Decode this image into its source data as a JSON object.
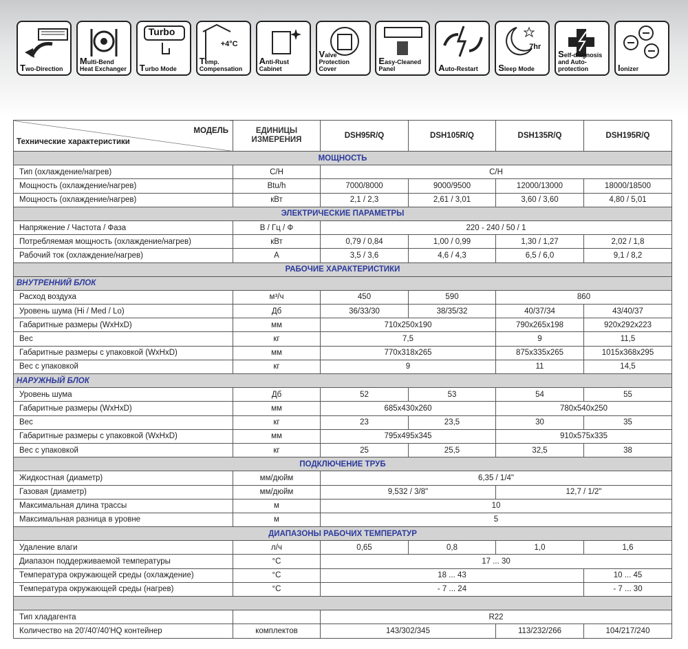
{
  "icons": [
    {
      "label": "Two-Direction"
    },
    {
      "label": "Multi-Bend Heat Exchanger"
    },
    {
      "label": "Turbo Mode",
      "glyph_text": "Turbo"
    },
    {
      "label": "Temp. Compensation",
      "glyph_text": "+4°C"
    },
    {
      "label": "Anti-Rust Cabinet"
    },
    {
      "label": "Valve Protection Cover"
    },
    {
      "label": "Easy-Cleaned Panel"
    },
    {
      "label": "Auto-Restart"
    },
    {
      "label": "Sleep Mode",
      "glyph_text": "7hr"
    },
    {
      "label": "Self-diagnosis and Auto-protection"
    },
    {
      "label": "Ionizer"
    }
  ],
  "table": {
    "header": {
      "model_label": "МОДЕЛЬ",
      "spec_label": "Технические характеристики",
      "unit_label": "ЕДИНИЦЫ ИЗМЕРЕНИЯ",
      "models": [
        "DSH95R/Q",
        "DSH105R/Q",
        "DSH135R/Q",
        "DSH195R/Q"
      ]
    },
    "rows": [
      {
        "section": "МОЩНОСТЬ"
      },
      {
        "label": "Тип (охлаждение/нагрев)",
        "unit": "C/H",
        "cells": [
          "C/H",
          null,
          null,
          null
        ]
      },
      {
        "label": "Мощность (охлаждение/нагрев)",
        "unit": "Btu/h",
        "cells": [
          "7000/8000",
          "9000/9500",
          "12000/13000",
          "18000/18500"
        ]
      },
      {
        "label": "Мощность (охлаждение/нагрев)",
        "unit": "кВт",
        "cells": [
          "2,1 / 2,3",
          "2,61 / 3,01",
          "3,60 / 3,60",
          "4,80 / 5,01"
        ]
      },
      {
        "section": "ЭЛЕКТРИЧЕСКИЕ ПАРАМЕТРЫ"
      },
      {
        "label": "Напряжение / Частота / Фаза",
        "unit": "В / Гц / Ф",
        "cells": [
          "220 - 240 / 50 / 1",
          null,
          null,
          null
        ]
      },
      {
        "label": "Потребляемая мощность (охлаждение/нагрев)",
        "unit": "кВт",
        "cells": [
          "0,79 / 0,84",
          "1,00 / 0,99",
          "1,30 / 1,27",
          "2,02 / 1,8"
        ]
      },
      {
        "label": "Рабочий ток (охлаждение/нагрев)",
        "unit": "А",
        "cells": [
          "3,5 / 3,6",
          "4,6 / 4,3",
          "6,5 / 6,0",
          "9,1 / 8,2"
        ]
      },
      {
        "section": "РАБОЧИЕ ХАРАКТЕРИСТИКИ"
      },
      {
        "subsection": "ВНУТРЕННИЙ БЛОК"
      },
      {
        "label": "Расход воздуха",
        "unit": "м³/ч",
        "cells": [
          "450",
          "590",
          "860",
          null
        ]
      },
      {
        "label": "Уровень шума (Hi / Med / Lo)",
        "unit": "Дб",
        "cells": [
          "36/33/30",
          "38/35/32",
          "40/37/34",
          "43/40/37"
        ]
      },
      {
        "label": "Габаритные размеры (WxHxD)",
        "unit": "мм",
        "cells": [
          "710x250x190",
          null,
          "790x265x198",
          "920x292x223"
        ]
      },
      {
        "label": "Вес",
        "unit": "кг",
        "cells": [
          "7,5",
          null,
          "9",
          "11,5"
        ]
      },
      {
        "label": "Габаритные размеры с упаковкой (WxHxD)",
        "unit": "мм",
        "cells": [
          "770x318x265",
          null,
          "875x335x265",
          "1015x368x295"
        ]
      },
      {
        "label": "Вес с упаковкой",
        "unit": "кг",
        "cells": [
          "9",
          null,
          "11",
          "14,5"
        ]
      },
      {
        "subsection": "НАРУЖНЫЙ БЛОК"
      },
      {
        "label": "Уровень шума",
        "unit": "Дб",
        "cells": [
          "52",
          "53",
          "54",
          "55"
        ]
      },
      {
        "label": "Габаритные размеры (WxHxD)",
        "unit": "мм",
        "cells": [
          "685x430x260",
          null,
          "780x540x250",
          null
        ]
      },
      {
        "label": "Вес",
        "unit": "кг",
        "cells": [
          "23",
          "23,5",
          "30",
          "35"
        ]
      },
      {
        "label": "Габаритные размеры с упаковкой (WxHxD)",
        "unit": "мм",
        "cells": [
          "795x495x345",
          null,
          "910x575x335",
          null
        ]
      },
      {
        "label": "Вес с упаковкой",
        "unit": "кг",
        "cells": [
          "25",
          "25,5",
          "32,5",
          "38"
        ]
      },
      {
        "section": "ПОДКЛЮЧЕНИЕ ТРУБ"
      },
      {
        "label": "Жидкостная (диаметр)",
        "unit": "мм/дюйм",
        "cells": [
          "6,35 / 1/4\"",
          null,
          null,
          null
        ]
      },
      {
        "label": "Газовая (диаметр)",
        "unit": "мм/дюйм",
        "cells": [
          "9,532 / 3/8\"",
          null,
          "12,7 / 1/2\"",
          null
        ]
      },
      {
        "label": "Максимальная длина трассы",
        "unit": "м",
        "cells": [
          "10",
          null,
          null,
          null
        ]
      },
      {
        "label": "Максимальная разница в уровне",
        "unit": "м",
        "cells": [
          "5",
          null,
          null,
          null
        ]
      },
      {
        "section": "ДИАПАЗОНЫ РАБОЧИХ ТЕМПЕРАТУР"
      },
      {
        "label": "Удаление влаги",
        "unit": "л/ч",
        "cells": [
          "0,65",
          "0,8",
          "1,0",
          "1,6"
        ]
      },
      {
        "label": "Диапазон поддерживаемой температуры",
        "unit": "°C",
        "cells": [
          "17 ... 30",
          null,
          null,
          null
        ]
      },
      {
        "label": "Температура окружающей среды (охлаждение)",
        "unit": "°C",
        "cells": [
          "18 ... 43",
          null,
          null,
          "10 ... 45"
        ]
      },
      {
        "label": "Температура окружающей среды (нагрев)",
        "unit": "°C",
        "cells": [
          "- 7 ... 24",
          null,
          null,
          "- 7 ... 30"
        ]
      }
    ],
    "footer_rows": [
      {
        "label": "Тип хладагента",
        "unit": null,
        "cells": [
          "R22",
          null,
          null,
          null
        ]
      },
      {
        "label": "Количество на 20'/40'/40'HQ контейнер",
        "unit": "комплектов",
        "cells": [
          "143/302/345",
          null,
          "113/232/266",
          "104/217/240"
        ]
      }
    ]
  }
}
